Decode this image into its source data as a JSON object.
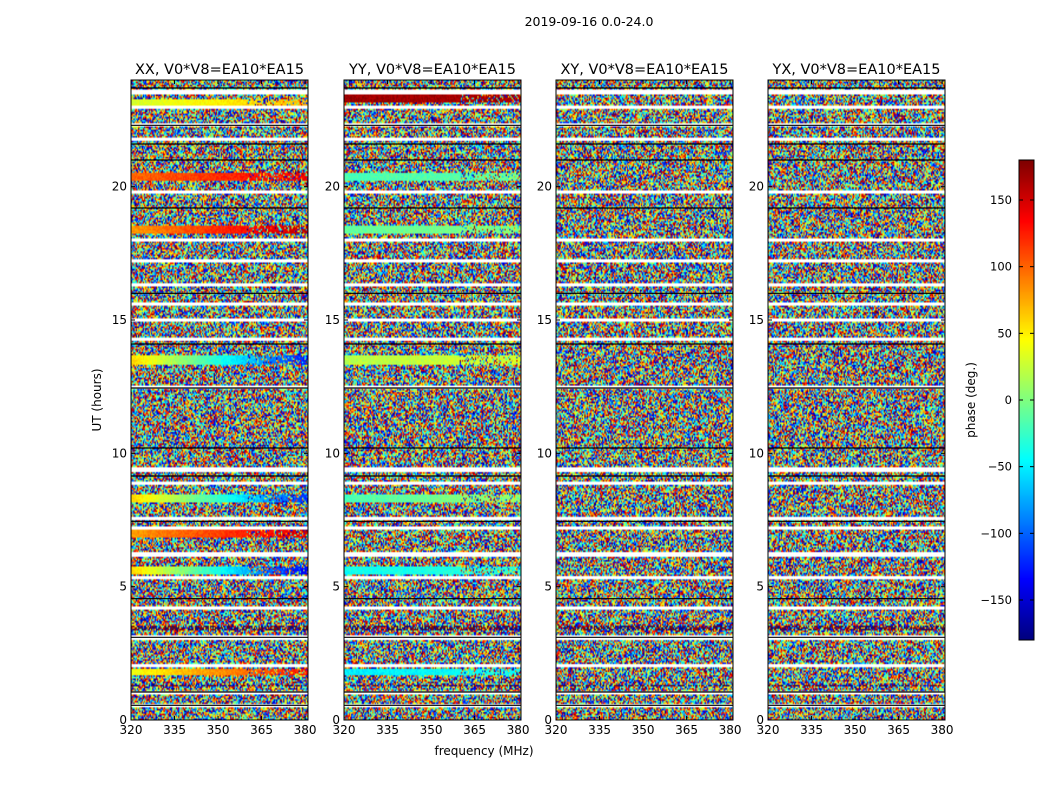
{
  "figure": {
    "suptitle": "2019-09-16 0.0-24.0",
    "xlabel": "frequency (MHz)",
    "ylabel": "UT (hours)"
  },
  "chart_data": {
    "type": "heatmap",
    "title": "2019-09-16 0.0-24.0",
    "xlabel": "frequency (MHz)",
    "ylabel": "UT (hours)",
    "xlim": [
      320,
      381
    ],
    "ylim": [
      0,
      24
    ],
    "xticks": [
      320,
      335,
      350,
      365,
      380
    ],
    "yticks": [
      0,
      5,
      10,
      15,
      20
    ],
    "colormap": "jet",
    "panels": [
      {
        "title": "XX, V0*V8=EA10*EA15",
        "polarization": "XX"
      },
      {
        "title": "YY, V0*V8=EA10*EA15",
        "polarization": "YY"
      },
      {
        "title": "XY, V0*V8=EA10*EA15",
        "polarization": "XY"
      },
      {
        "title": "YX, V0*V8=EA10*EA15",
        "polarization": "YX"
      }
    ],
    "colorbar": {
      "label": "phase (deg.)",
      "range": [
        -180,
        180
      ],
      "ticks": [
        -150,
        -100,
        -50,
        0,
        50,
        100,
        150
      ]
    },
    "flagged_ut_hours": [
      0.55,
      1.0,
      2.05,
      3.1,
      4.2,
      5.35,
      6.2,
      7.2,
      7.55,
      8.9,
      9.4,
      12.5,
      14.3,
      15.0,
      15.6,
      16.3,
      17.2,
      18.0,
      19.8,
      21.8,
      22.3,
      23.0,
      23.55
    ],
    "coherent_bands": [
      {
        "panel": "XX",
        "ut_hours": 23.1,
        "phase_start_deg": 30,
        "phase_end_deg": 70
      },
      {
        "panel": "XX",
        "ut_hours": 20.4,
        "phase_start_deg": 100,
        "phase_end_deg": 140
      },
      {
        "panel": "XX",
        "ut_hours": 18.4,
        "phase_start_deg": 80,
        "phase_end_deg": 160
      },
      {
        "panel": "XX",
        "ut_hours": 13.5,
        "phase_start_deg": 60,
        "phase_end_deg": -130
      },
      {
        "panel": "XX",
        "ut_hours": 8.3,
        "phase_start_deg": 60,
        "phase_end_deg": -120
      },
      {
        "panel": "XX",
        "ut_hours": 7.0,
        "phase_start_deg": 80,
        "phase_end_deg": 150
      },
      {
        "panel": "XX",
        "ut_hours": 5.6,
        "phase_start_deg": 60,
        "phase_end_deg": -140
      },
      {
        "panel": "XX",
        "ut_hours": 1.8,
        "phase_start_deg": 40,
        "phase_end_deg": 130
      },
      {
        "panel": "YY",
        "ut_hours": 23.3,
        "phase_start_deg": 170,
        "phase_end_deg": 165
      },
      {
        "panel": "YY",
        "ut_hours": 20.4,
        "phase_start_deg": -20,
        "phase_end_deg": -10
      },
      {
        "panel": "YY",
        "ut_hours": 18.4,
        "phase_start_deg": -10,
        "phase_end_deg": 0
      },
      {
        "panel": "YY",
        "ut_hours": 13.5,
        "phase_start_deg": 20,
        "phase_end_deg": 30
      },
      {
        "panel": "YY",
        "ut_hours": 8.3,
        "phase_start_deg": -20,
        "phase_end_deg": 10
      },
      {
        "panel": "YY",
        "ut_hours": 5.6,
        "phase_start_deg": -40,
        "phase_end_deg": -30
      },
      {
        "panel": "YY",
        "ut_hours": 1.8,
        "phase_start_deg": -50,
        "phase_end_deg": -40
      }
    ]
  }
}
